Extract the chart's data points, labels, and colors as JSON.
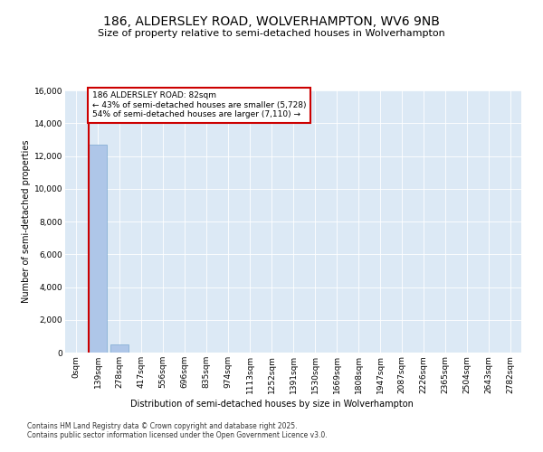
{
  "title": "186, ALDERSLEY ROAD, WOLVERHAMPTON, WV6 9NB",
  "subtitle": "Size of property relative to semi-detached houses in Wolverhampton",
  "xlabel": "Distribution of semi-detached houses by size in Wolverhampton",
  "ylabel": "Number of semi-detached properties",
  "footnote1": "Contains HM Land Registry data © Crown copyright and database right 2025.",
  "footnote2": "Contains public sector information licensed under the Open Government Licence v3.0.",
  "bar_labels": [
    "0sqm",
    "139sqm",
    "278sqm",
    "417sqm",
    "556sqm",
    "696sqm",
    "835sqm",
    "974sqm",
    "1113sqm",
    "1252sqm",
    "1391sqm",
    "1530sqm",
    "1669sqm",
    "1808sqm",
    "1947sqm",
    "2087sqm",
    "2226sqm",
    "2365sqm",
    "2504sqm",
    "2643sqm",
    "2782sqm"
  ],
  "bar_values": [
    0,
    12700,
    500,
    0,
    0,
    0,
    0,
    0,
    0,
    0,
    0,
    0,
    0,
    0,
    0,
    0,
    0,
    0,
    0,
    0,
    0
  ],
  "bar_color": "#aec6e8",
  "bar_edge_color": "#7aa8d0",
  "property_bin_index": 0.59,
  "property_label": "186 ALDERSLEY ROAD: 82sqm",
  "smaller_pct": 43,
  "smaller_count": 5728,
  "larger_pct": 54,
  "larger_count": 7110,
  "annotation_box_color": "#cc0000",
  "vline_color": "#cc0000",
  "plot_bg_color": "#dce9f5",
  "ylim": [
    0,
    16000
  ],
  "yticks": [
    0,
    2000,
    4000,
    6000,
    8000,
    10000,
    12000,
    14000,
    16000
  ],
  "title_fontsize": 10,
  "subtitle_fontsize": 8,
  "axis_label_fontsize": 7,
  "tick_fontsize": 6.5,
  "annotation_fontsize": 6.5,
  "footnote_fontsize": 5.5
}
